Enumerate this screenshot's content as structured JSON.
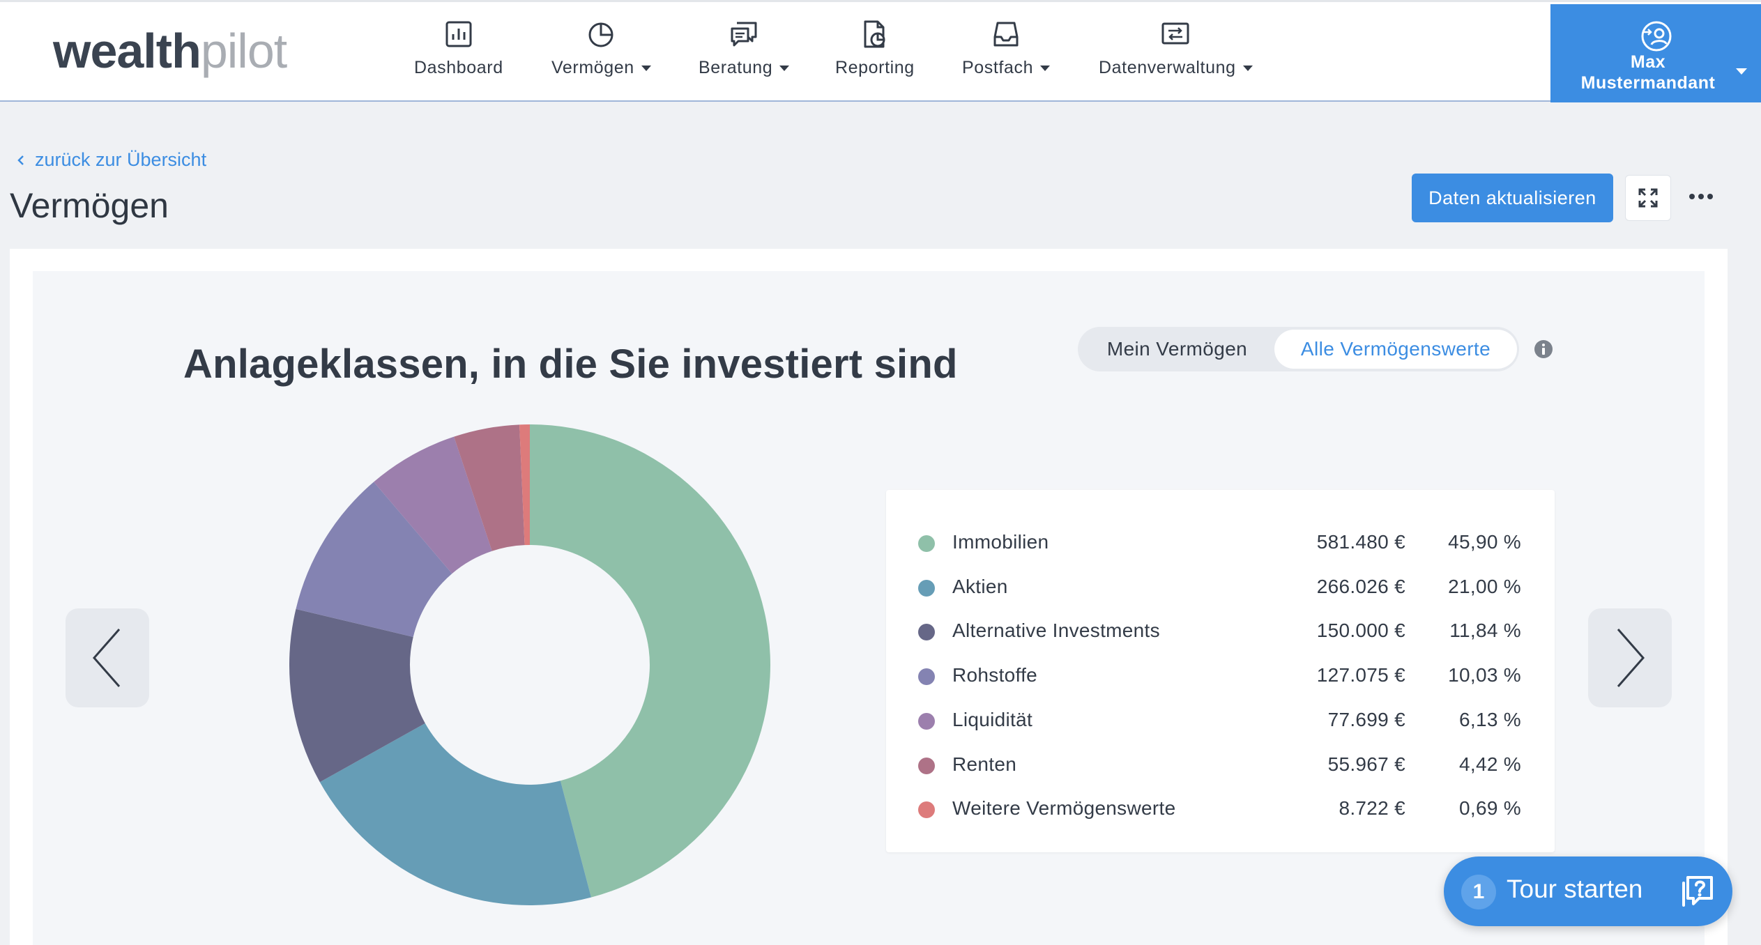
{
  "header": {
    "logo_part1": "wealth",
    "logo_part2": "pilot",
    "nav": [
      {
        "label": "Dashboard",
        "icon": "bar-chart-icon"
      },
      {
        "label": "Vermögen",
        "icon": "pie-chart-icon",
        "dropdown": true
      },
      {
        "label": "Beratung",
        "icon": "chat-icon",
        "dropdown": true
      },
      {
        "label": "Reporting",
        "icon": "report-icon"
      },
      {
        "label": "Postfach",
        "icon": "inbox-icon",
        "dropdown": true
      },
      {
        "label": "Datenverwaltung",
        "icon": "data-transfer-icon",
        "dropdown": true
      }
    ],
    "user": {
      "first": "Max",
      "last": "Mustermandant",
      "icon": "user-switch-icon"
    }
  },
  "page": {
    "back_label": "zurück zur Übersicht",
    "title": "Vermögen",
    "refresh_label": "Daten aktualisieren"
  },
  "card": {
    "title": "Anlageklassen, in die Sie investiert sind",
    "toggle": {
      "option1": "Mein Vermögen",
      "option2": "Alle Vermögenswerte",
      "active": "option2"
    }
  },
  "chart_data": {
    "type": "pie",
    "donut": true,
    "categories": [
      "Immobilien",
      "Aktien",
      "Alternative Investments",
      "Rohstoffe",
      "Liquidität",
      "Renten",
      "Weitere Vermögenswerte"
    ],
    "amounts": [
      "581.480 €",
      "266.026 €",
      "150.000 €",
      "127.075 €",
      "77.699 €",
      "55.967 €",
      "8.722 €"
    ],
    "percent_labels": [
      "45,90 %",
      "21,00 %",
      "11,84 %",
      "10,03 %",
      "6,13 %",
      "4,42 %",
      "0,69 %"
    ],
    "values": [
      45.9,
      21.0,
      11.84,
      10.03,
      6.13,
      4.42,
      0.69
    ],
    "colors": [
      "#8fc0a9",
      "#669db6",
      "#666787",
      "#8483b2",
      "#9c7fad",
      "#ae7287",
      "#dd7b7b"
    ]
  },
  "tour": {
    "badge": "1",
    "label": "Tour starten"
  }
}
